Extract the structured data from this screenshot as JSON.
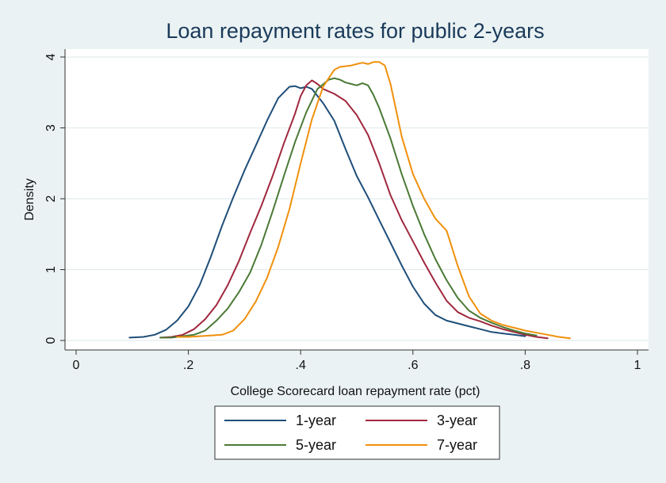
{
  "chart_data": {
    "type": "line",
    "title": "Loan repayment rates for public 2-years",
    "xlabel": "College Scorecard loan repayment rate (pct)",
    "ylabel": "Density",
    "xlim": [
      0,
      1
    ],
    "ylim": [
      0,
      4
    ],
    "x_ticks": [
      0,
      0.2,
      0.4,
      0.6,
      0.8,
      1
    ],
    "x_tick_labels": [
      "0",
      ".2",
      ".4",
      ".6",
      ".8",
      "1"
    ],
    "y_ticks": [
      0,
      1,
      2,
      3,
      4
    ],
    "y_tick_labels": [
      "0",
      "1",
      "2",
      "3",
      "4"
    ],
    "grid": "horizontal",
    "legend": "bottom",
    "series": [
      {
        "name": "1-year",
        "color": "#1f4e79",
        "x": [
          0.095,
          0.12,
          0.14,
          0.16,
          0.18,
          0.2,
          0.22,
          0.24,
          0.26,
          0.28,
          0.3,
          0.32,
          0.34,
          0.36,
          0.38,
          0.39,
          0.4,
          0.41,
          0.42,
          0.44,
          0.46,
          0.48,
          0.5,
          0.52,
          0.54,
          0.56,
          0.58,
          0.6,
          0.62,
          0.64,
          0.66,
          0.68,
          0.7,
          0.72,
          0.74,
          0.76,
          0.78,
          0.8
        ],
        "y": [
          0.04,
          0.05,
          0.08,
          0.15,
          0.28,
          0.48,
          0.78,
          1.18,
          1.62,
          2.02,
          2.4,
          2.75,
          3.1,
          3.42,
          3.58,
          3.59,
          3.56,
          3.58,
          3.55,
          3.35,
          3.1,
          2.7,
          2.32,
          2.02,
          1.7,
          1.38,
          1.06,
          0.76,
          0.52,
          0.36,
          0.28,
          0.24,
          0.2,
          0.16,
          0.12,
          0.1,
          0.08,
          0.06
        ]
      },
      {
        "name": "3-year",
        "color": "#a0283e",
        "x": [
          0.15,
          0.17,
          0.19,
          0.21,
          0.23,
          0.25,
          0.27,
          0.29,
          0.31,
          0.33,
          0.35,
          0.37,
          0.39,
          0.4,
          0.41,
          0.42,
          0.43,
          0.44,
          0.46,
          0.48,
          0.5,
          0.52,
          0.54,
          0.56,
          0.58,
          0.6,
          0.62,
          0.64,
          0.66,
          0.68,
          0.7,
          0.72,
          0.74,
          0.76,
          0.78,
          0.8,
          0.82,
          0.84
        ],
        "y": [
          0.04,
          0.05,
          0.08,
          0.16,
          0.3,
          0.5,
          0.78,
          1.12,
          1.52,
          1.9,
          2.32,
          2.78,
          3.2,
          3.45,
          3.6,
          3.67,
          3.62,
          3.55,
          3.48,
          3.38,
          3.18,
          2.9,
          2.5,
          2.05,
          1.7,
          1.4,
          1.1,
          0.82,
          0.56,
          0.4,
          0.32,
          0.27,
          0.21,
          0.16,
          0.12,
          0.08,
          0.05,
          0.03
        ]
      },
      {
        "name": "5-year",
        "color": "#4a7a35",
        "x": [
          0.15,
          0.17,
          0.19,
          0.21,
          0.23,
          0.25,
          0.27,
          0.29,
          0.31,
          0.33,
          0.35,
          0.37,
          0.39,
          0.41,
          0.43,
          0.45,
          0.46,
          0.47,
          0.48,
          0.49,
          0.5,
          0.51,
          0.52,
          0.53,
          0.54,
          0.56,
          0.58,
          0.6,
          0.62,
          0.64,
          0.66,
          0.68,
          0.7,
          0.72,
          0.74,
          0.76,
          0.78,
          0.8,
          0.82
        ],
        "y": [
          0.04,
          0.04,
          0.06,
          0.08,
          0.14,
          0.28,
          0.45,
          0.68,
          0.96,
          1.35,
          1.82,
          2.32,
          2.8,
          3.22,
          3.55,
          3.68,
          3.7,
          3.68,
          3.64,
          3.62,
          3.6,
          3.63,
          3.6,
          3.46,
          3.28,
          2.85,
          2.35,
          1.9,
          1.5,
          1.15,
          0.85,
          0.6,
          0.42,
          0.32,
          0.25,
          0.19,
          0.14,
          0.1,
          0.07
        ]
      },
      {
        "name": "7-year",
        "color": "#f0900c",
        "x": [
          0.18,
          0.2,
          0.22,
          0.24,
          0.26,
          0.28,
          0.3,
          0.32,
          0.34,
          0.36,
          0.38,
          0.4,
          0.42,
          0.44,
          0.46,
          0.47,
          0.48,
          0.49,
          0.5,
          0.51,
          0.52,
          0.53,
          0.54,
          0.55,
          0.56,
          0.57,
          0.58,
          0.6,
          0.62,
          0.64,
          0.66,
          0.68,
          0.7,
          0.72,
          0.74,
          0.76,
          0.78,
          0.8,
          0.82,
          0.84,
          0.86,
          0.88
        ],
        "y": [
          0.05,
          0.05,
          0.06,
          0.07,
          0.08,
          0.14,
          0.3,
          0.55,
          0.88,
          1.32,
          1.85,
          2.5,
          3.12,
          3.58,
          3.82,
          3.86,
          3.87,
          3.88,
          3.9,
          3.92,
          3.9,
          3.93,
          3.93,
          3.88,
          3.62,
          3.25,
          2.88,
          2.35,
          2.0,
          1.72,
          1.55,
          1.05,
          0.62,
          0.38,
          0.28,
          0.22,
          0.18,
          0.14,
          0.11,
          0.08,
          0.05,
          0.03
        ]
      }
    ],
    "style": {
      "background": "#eaf2f3",
      "plot_background": "#ffffff",
      "title_color": "#1a3a5a",
      "grid_color": "#e4ecee",
      "axis_color": "#333333"
    }
  }
}
